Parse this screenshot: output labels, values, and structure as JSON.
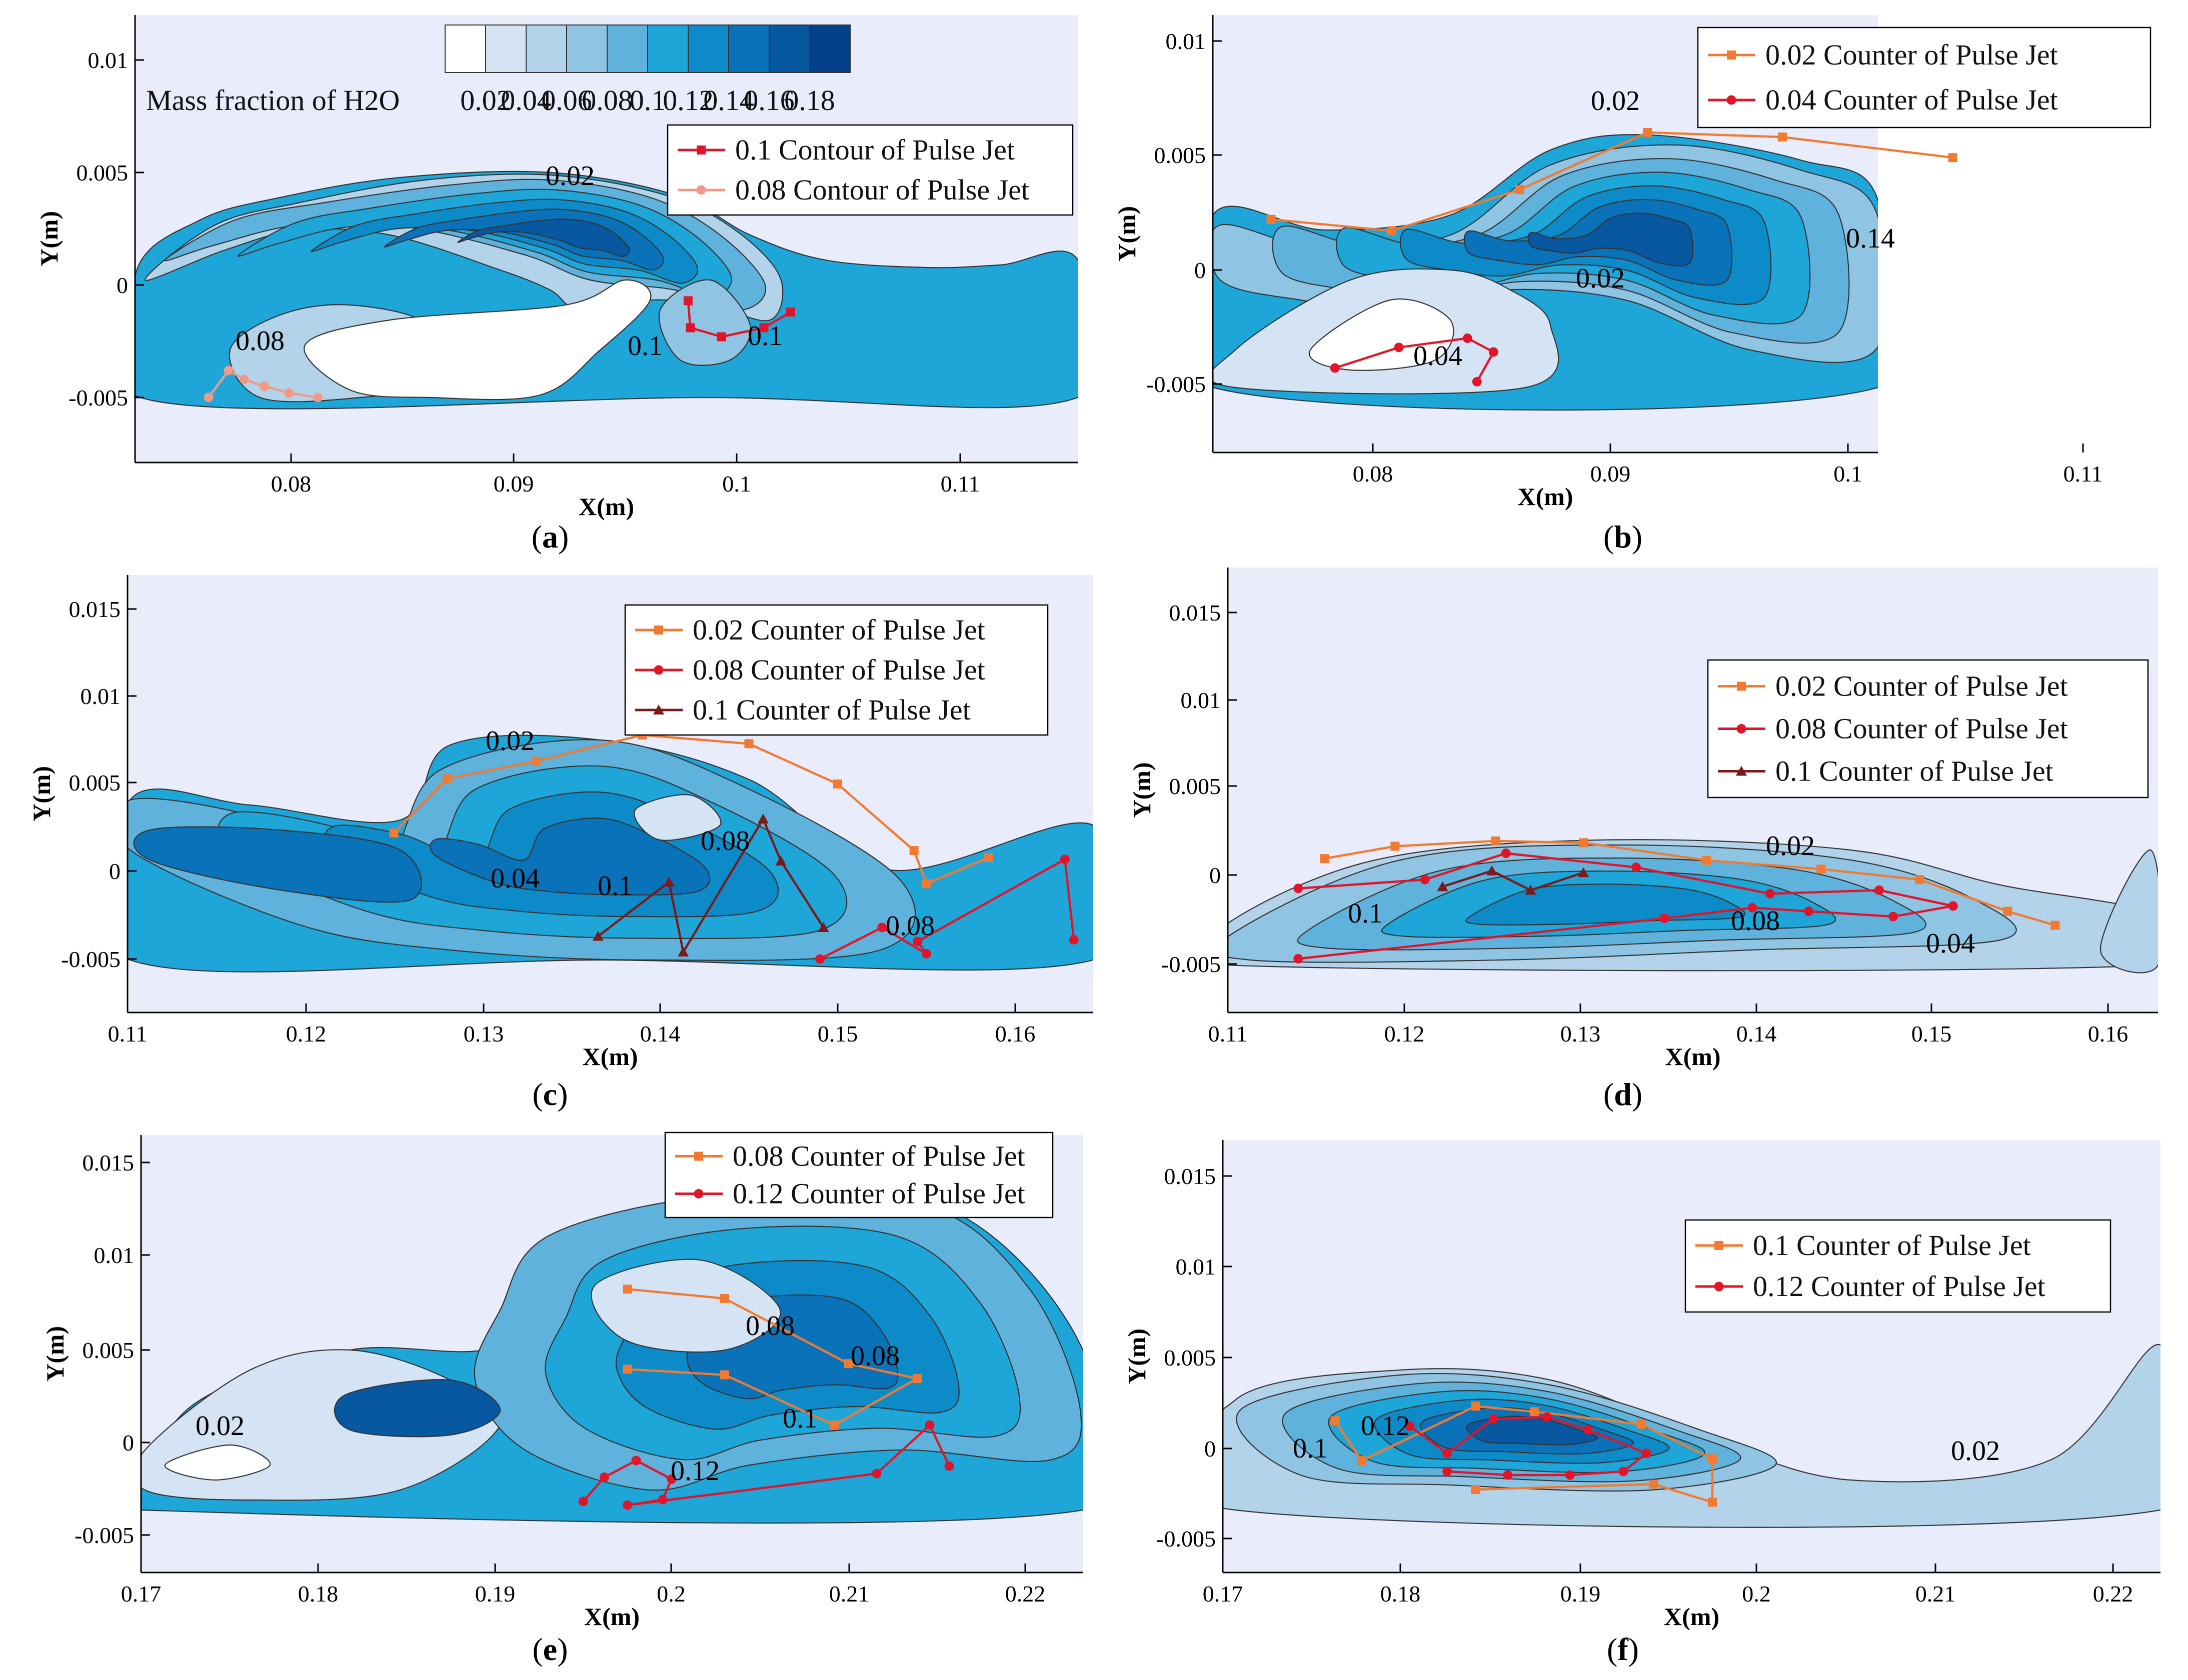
{
  "palette": {
    "background": "#e9ecfa",
    "levels": [
      "#ffffff",
      "#d4e4f4",
      "#b2d3ea",
      "#8fc5e3",
      "#5fb2dc",
      "#1ea6d9",
      "#0d8bc9",
      "#0a72b8",
      "#0758a1",
      "#04408a"
    ],
    "orange": "#f07a32",
    "red": "#e0152a",
    "darkred": "#7a1a1a",
    "salmon": "#ef9a86"
  },
  "colorbar": {
    "title": "Mass fraction of H2O",
    "labels": [
      "0.02",
      "0.04",
      "0.06",
      "0.08",
      "0.1",
      "0.12",
      "0.14",
      "0.16",
      "0.18"
    ]
  },
  "axis_labels": {
    "x": "X(m)",
    "y": "Y(m)"
  },
  "panels": [
    {
      "id": "a",
      "caption_letter": "a",
      "x_ticks": [
        "0.08",
        "0.09",
        "0.1",
        "0.11"
      ],
      "y_ticks": [
        "0.01",
        "0.005",
        "0",
        "-0.005"
      ],
      "contour_labels": [
        "0.02",
        "0.08",
        "0.1",
        "0.1"
      ],
      "legend": [
        {
          "label": "0.1   Contour of Pulse Jet",
          "color": "#e0152a",
          "marker": "square"
        },
        {
          "label": "0.08 Contour of Pulse Jet",
          "color": "#ef9a86",
          "marker": "circle"
        }
      ]
    },
    {
      "id": "b",
      "caption_letter": "b",
      "x_ticks": [
        "0.08",
        "0.09",
        "0.1",
        "0.11"
      ],
      "y_ticks": [
        "0.01",
        "0.005",
        "0",
        "-0.005"
      ],
      "contour_labels": [
        "0.02",
        "0.14",
        "0.02",
        "0.04"
      ],
      "legend": [
        {
          "label": "0.02 Counter of Pulse Jet",
          "color": "#f07a32",
          "marker": "square"
        },
        {
          "label": "0.04 Counter of Pulse Jet",
          "color": "#e0152a",
          "marker": "circle"
        }
      ]
    },
    {
      "id": "c",
      "caption_letter": "c",
      "x_ticks": [
        "0.11",
        "0.12",
        "0.13",
        "0.14",
        "0.15",
        "0.16"
      ],
      "y_ticks": [
        "0.015",
        "0.01",
        "0.005",
        "0",
        "-0.005"
      ],
      "contour_labels": [
        "0.02",
        "0.04",
        "0.08",
        "0.1",
        "0.08"
      ],
      "legend": [
        {
          "label": "0.02 Counter of Pulse Jet",
          "color": "#f07a32",
          "marker": "square"
        },
        {
          "label": "0.08 Counter of Pulse Jet",
          "color": "#e0152a",
          "marker": "circle"
        },
        {
          "label": "0.1  Counter of Pulse Jet",
          "color": "#7a1a1a",
          "marker": "triangle"
        }
      ]
    },
    {
      "id": "d",
      "caption_letter": "d",
      "x_ticks": [
        "0.11",
        "0.12",
        "0.13",
        "0.14",
        "0.15",
        "0.16"
      ],
      "y_ticks": [
        "0.015",
        "0.01",
        "0.005",
        "0",
        "-0.005"
      ],
      "contour_labels": [
        "0.02",
        "0.1",
        "0.08",
        "0.04"
      ],
      "legend": [
        {
          "label": "0.02 Counter of Pulse Jet",
          "color": "#f07a32",
          "marker": "square"
        },
        {
          "label": "0.08 Counter of Pulse Jet",
          "color": "#e0152a",
          "marker": "circle"
        },
        {
          "label": "0.1  Counter of Pulse Jet",
          "color": "#7a1a1a",
          "marker": "triangle"
        }
      ]
    },
    {
      "id": "e",
      "caption_letter": "e",
      "x_ticks": [
        "0.17",
        "0.18",
        "0.19",
        "0.2",
        "0.21",
        "0.22"
      ],
      "y_ticks": [
        "0.015",
        "0.01",
        "0.005",
        "0",
        "-0.005"
      ],
      "contour_labels": [
        "0.02",
        "0.08",
        "0.08",
        "0.1",
        "0.12"
      ],
      "legend": [
        {
          "label": "0.08 Counter of Pulse Jet",
          "color": "#f07a32",
          "marker": "square"
        },
        {
          "label": "0.12 Counter of Pulse Jet",
          "color": "#e0152a",
          "marker": "circle"
        }
      ]
    },
    {
      "id": "f",
      "caption_letter": "f",
      "x_ticks": [
        "0.17",
        "0.18",
        "0.19",
        "0.2",
        "0.21",
        "0.22"
      ],
      "y_ticks": [
        "0.015",
        "0.01",
        "0.005",
        "0",
        "-0.005"
      ],
      "contour_labels": [
        "0.1",
        "0.12",
        "0.02"
      ],
      "legend": [
        {
          "label": "0.1  Counter of Pulse Jet",
          "color": "#f07a32",
          "marker": "square"
        },
        {
          "label": "0.12 Counter of Pulse Jet",
          "color": "#e0152a",
          "marker": "circle"
        }
      ]
    }
  ],
  "chart_data": [
    {
      "type": "heatmap",
      "panel": "a",
      "variable": "Mass fraction of H2O",
      "xlim": [
        0.073,
        0.115
      ],
      "ylim": [
        -0.007,
        0.0115
      ],
      "levels": [
        0.02,
        0.04,
        0.06,
        0.08,
        0.1,
        0.12,
        0.14,
        0.16,
        0.18
      ],
      "series": [
        {
          "name": "0.1   Contour of Pulse Jet",
          "x": [
            0.0978,
            0.0979,
            0.0993,
            0.1012,
            0.1024
          ],
          "y": [
            -0.0007,
            -0.0019,
            -0.0023,
            -0.0019,
            -0.0012
          ]
        },
        {
          "name": "0.08 Contour of Pulse Jet",
          "x": [
            0.0763,
            0.0772,
            0.0779,
            0.0788,
            0.0799,
            0.0812
          ],
          "y": [
            -0.005,
            -0.0038,
            -0.0042,
            -0.0045,
            -0.0048,
            -0.005
          ]
        }
      ]
    },
    {
      "type": "heatmap",
      "panel": "b",
      "variable": "Mass fraction of H2O",
      "xlim": [
        0.073,
        0.114
      ],
      "ylim": [
        -0.007,
        0.011
      ],
      "levels": [
        0.02,
        0.04,
        0.06,
        0.08,
        0.1,
        0.12,
        0.14,
        0.16,
        0.18
      ],
      "series": [
        {
          "name": "0.02 Counter of Pulse Jet",
          "x": [
            0.0757,
            0.0808,
            0.0862,
            0.0916,
            0.0973,
            0.1045
          ],
          "y": [
            0.0022,
            0.0017,
            0.0035,
            0.006,
            0.0058,
            0.0049
          ]
        },
        {
          "name": "0.04 Counter of Pulse Jet",
          "x": [
            0.0784,
            0.0811,
            0.084,
            0.0851,
            0.0844
          ],
          "y": [
            -0.0043,
            -0.0034,
            -0.003,
            -0.0036,
            -0.0049
          ]
        }
      ]
    },
    {
      "type": "heatmap",
      "panel": "c",
      "variable": "Mass fraction of H2O",
      "xlim": [
        0.11,
        0.165
      ],
      "ylim": [
        -0.008,
        0.0165
      ],
      "levels": [
        0.02,
        0.04,
        0.06,
        0.08,
        0.1,
        0.12,
        0.14,
        0.16,
        0.18
      ],
      "series": [
        {
          "name": "0.02 Counter of Pulse Jet",
          "x": [
            0.125,
            0.128,
            0.133,
            0.139,
            0.145,
            0.15,
            0.1543,
            0.155,
            0.1585
          ],
          "y": [
            0.0022,
            0.0053,
            0.0063,
            0.0078,
            0.0073,
            0.005,
            0.0012,
            -0.0007,
            0.0008
          ]
        },
        {
          "name": "0.08 Counter of Pulse Jet",
          "x": [
            0.149,
            0.1525,
            0.155,
            0.1545,
            0.1628,
            0.1633
          ],
          "y": [
            -0.005,
            -0.0032,
            -0.0047,
            -0.004,
            0.0007,
            -0.0039
          ]
        },
        {
          "name": "0.1  Counter of Pulse Jet",
          "x": [
            0.1365,
            0.1405,
            0.1413,
            0.1458,
            0.1468,
            0.1492
          ],
          "y": [
            -0.0037,
            -0.0006,
            -0.0046,
            0.003,
            0.0006,
            -0.0032
          ]
        }
      ]
    },
    {
      "type": "heatmap",
      "panel": "d",
      "variable": "Mass fraction of H2O",
      "xlim": [
        0.11,
        0.163
      ],
      "ylim": [
        -0.008,
        0.0165
      ],
      "levels": [
        0.02,
        0.04,
        0.06,
        0.08,
        0.1,
        0.12,
        0.14,
        0.16,
        0.18
      ],
      "series": [
        {
          "name": "0.02 Counter of Pulse Jet",
          "x": [
            0.1155,
            0.1195,
            0.1252,
            0.1302,
            0.1372,
            0.1437,
            0.1493,
            0.1543,
            0.157
          ],
          "y": [
            0.001,
            0.0017,
            0.002,
            0.0019,
            0.0009,
            0.0004,
            -0.0002,
            -0.002,
            -0.0028
          ]
        },
        {
          "name": "0.08 Counter of Pulse Jet",
          "x": [
            0.114,
            0.1212,
            0.1258,
            0.1332,
            0.1408,
            0.147,
            0.1512,
            0.1478,
            0.143,
            0.1398,
            0.1348,
            0.114
          ],
          "y": [
            -0.0007,
            -0.0002,
            0.0013,
            0.0005,
            -0.001,
            -0.0008,
            -0.0017,
            -0.0023,
            -0.002,
            -0.0018,
            -0.0024,
            -0.0047
          ]
        },
        {
          "name": "0.1  Counter of Pulse Jet",
          "x": [
            0.1222,
            0.125,
            0.1272,
            0.1302
          ],
          "y": [
            -0.0006,
            0.0003,
            -0.0008,
            0.0002
          ]
        }
      ]
    },
    {
      "type": "heatmap",
      "panel": "e",
      "variable": "Mass fraction of H2O",
      "xlim": [
        0.17,
        0.221
      ],
      "ylim": [
        -0.008,
        0.016
      ],
      "levels": [
        0.02,
        0.04,
        0.06,
        0.08,
        0.1,
        0.12,
        0.14,
        0.16,
        0.18
      ],
      "series": [
        {
          "name": "0.08 Counter of Pulse Jet",
          "x": [
            0.1975,
            0.203,
            0.21,
            0.2139,
            0.2092,
            0.203,
            0.1975
          ],
          "y": [
            0.0082,
            0.0077,
            0.0042,
            0.0034,
            0.0009,
            0.0036,
            0.0039
          ]
        },
        {
          "name": "0.12 Counter of Pulse Jet",
          "x": [
            0.195,
            0.1962,
            0.198,
            0.2,
            0.1995,
            0.1975,
            0.2116,
            0.2146,
            0.2157
          ],
          "y": [
            -0.0032,
            -0.0019,
            -0.001,
            -0.002,
            -0.0031,
            -0.0034,
            -0.0017,
            0.0009,
            -0.0013
          ]
        }
      ]
    },
    {
      "type": "heatmap",
      "panel": "f",
      "variable": "Mass fraction of H2O",
      "xlim": [
        0.17,
        0.222
      ],
      "ylim": [
        -0.008,
        0.016
      ],
      "levels": [
        0.02,
        0.04,
        0.06,
        0.08,
        0.1,
        0.12,
        0.14,
        0.16,
        0.18
      ],
      "series": [
        {
          "name": "0.1  Counter of Pulse Jet",
          "x": [
            0.1763,
            0.1778,
            0.1842,
            0.1875,
            0.1935,
            0.1975,
            0.1975,
            0.1942,
            0.1842
          ],
          "y": [
            0.0015,
            -0.0007,
            0.0023,
            0.002,
            0.0013,
            -0.0006,
            -0.003,
            -0.002,
            -0.0023
          ]
        },
        {
          "name": "0.12 Counter of Pulse Jet",
          "x": [
            0.1805,
            0.1826,
            0.1852,
            0.1882,
            0.1905,
            0.1938,
            0.1925,
            0.1895,
            0.186,
            0.1826
          ],
          "y": [
            0.0012,
            -0.0003,
            0.0016,
            0.0017,
            0.001,
            -0.0003,
            -0.0013,
            -0.0015,
            -0.0015,
            -0.0013
          ]
        }
      ]
    }
  ]
}
